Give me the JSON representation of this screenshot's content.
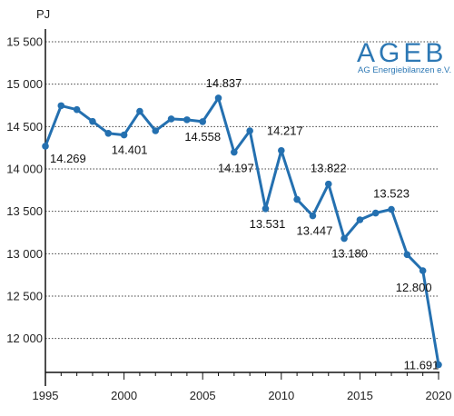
{
  "logo": {
    "title": "AGEB",
    "subtitle": "AG Energiebilanzen e.V."
  },
  "colors": {
    "line": "#2470b0",
    "grid": "#444444",
    "axis": "#111111",
    "logo": "#2d78b4"
  },
  "chart_data": {
    "type": "line",
    "title": "",
    "xlabel": "",
    "ylabel": "PJ",
    "ylim": [
      11600,
      15650
    ],
    "xlim": [
      1995,
      2020
    ],
    "yticks": [
      {
        "value": 12000,
        "label": "12 000"
      },
      {
        "value": 12500,
        "label": "12 500"
      },
      {
        "value": 13000,
        "label": "13 000"
      },
      {
        "value": 13500,
        "label": "13 500"
      },
      {
        "value": 14000,
        "label": "14 000"
      },
      {
        "value": 14500,
        "label": "14 500"
      },
      {
        "value": 15000,
        "label": "15 000"
      },
      {
        "value": 15500,
        "label": "15 500"
      }
    ],
    "xticks": [
      {
        "value": 1995,
        "label": "1995"
      },
      {
        "value": 2000,
        "label": "2000"
      },
      {
        "value": 2005,
        "label": "2005"
      },
      {
        "value": 2010,
        "label": "2010"
      },
      {
        "value": 2015,
        "label": "2015"
      },
      {
        "value": 2020,
        "label": "2020"
      }
    ],
    "grid": "horizontal dotted",
    "series": [
      {
        "x": [
          1995,
          1996,
          1997,
          1998,
          1999,
          2000,
          2001,
          2002,
          2003,
          2004,
          2005,
          2006,
          2007,
          2008,
          2009,
          2010,
          2011,
          2012,
          2013,
          2014,
          2015,
          2016,
          2017,
          2018,
          2019,
          2020
        ],
        "y": [
          14269,
          14746,
          14700,
          14560,
          14420,
          14401,
          14680,
          14450,
          14590,
          14580,
          14558,
          14837,
          14197,
          14450,
          13531,
          14217,
          13640,
          13447,
          13822,
          13180,
          13400,
          13480,
          13523,
          12990,
          12800,
          11691
        ]
      }
    ],
    "data_labels": [
      {
        "x": 1995,
        "y": 14269,
        "text": "14.269"
      },
      {
        "x": 2000,
        "y": 14401,
        "text": "14.401"
      },
      {
        "x": 2005,
        "y": 14558,
        "text": "14.558"
      },
      {
        "x": 2006,
        "y": 14837,
        "text": "14.837"
      },
      {
        "x": 2007,
        "y": 14197,
        "text": "14.197"
      },
      {
        "x": 2009,
        "y": 13531,
        "text": "13.531"
      },
      {
        "x": 2010,
        "y": 14217,
        "text": "14.217"
      },
      {
        "x": 2012,
        "y": 13447,
        "text": "13.447"
      },
      {
        "x": 2013,
        "y": 13822,
        "text": "13.822"
      },
      {
        "x": 2014,
        "y": 13180,
        "text": "13.180"
      },
      {
        "x": 2017,
        "y": 13523,
        "text": "13.523"
      },
      {
        "x": 2019,
        "y": 12800,
        "text": "12.800"
      },
      {
        "x": 2020,
        "y": 11691,
        "text": "11.691"
      }
    ]
  }
}
